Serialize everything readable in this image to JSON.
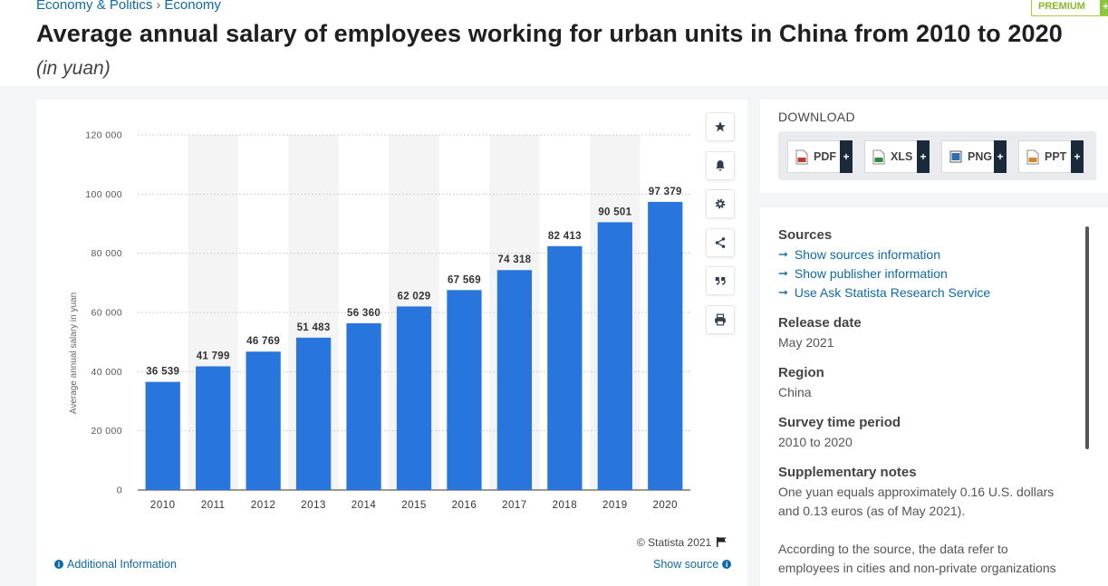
{
  "breadcrumb": {
    "part1": "Economy & Politics",
    "sep": "›",
    "part2": "Economy"
  },
  "premium": {
    "label": "PREMIUM",
    "plus": "+"
  },
  "title": "Average annual salary of employees working for urban units in China from 2010 to 2020",
  "subtitle": "(in yuan)",
  "chart_data": {
    "type": "bar",
    "categories": [
      "2010",
      "2011",
      "2012",
      "2013",
      "2014",
      "2015",
      "2016",
      "2017",
      "2018",
      "2019",
      "2020"
    ],
    "values": [
      36539,
      41799,
      46769,
      51483,
      56360,
      62029,
      67569,
      74318,
      82413,
      90501,
      97379
    ],
    "value_labels": [
      "36 539",
      "41 799",
      "46 769",
      "51 483",
      "56 360",
      "62 029",
      "67 569",
      "74 318",
      "82 413",
      "90 501",
      "97 379"
    ],
    "ylabel": "Average annual salary in yuan",
    "ylim": [
      0,
      120000
    ],
    "yticks": [
      0,
      20000,
      40000,
      60000,
      80000,
      100000,
      120000
    ],
    "ytick_labels": [
      "0",
      "20 000",
      "40 000",
      "60 000",
      "80 000",
      "100 000",
      "120 000"
    ],
    "bar_color": "#2876dd",
    "grid": true
  },
  "chart_footer": {
    "credit": "© Statista 2021",
    "additional_info": "Additional Information",
    "show_source": "Show source"
  },
  "toolbar_icons": [
    "star-icon",
    "bell-icon",
    "gear-icon",
    "share-icon",
    "quote-icon",
    "print-icon"
  ],
  "download": {
    "label": "DOWNLOAD",
    "buttons": [
      {
        "label": "PDF",
        "color": "#c0392b"
      },
      {
        "label": "XLS",
        "color": "#2e8b3a"
      },
      {
        "label": "PNG",
        "color": "#2a6fb0"
      },
      {
        "label": "PPT",
        "color": "#d9822b"
      }
    ],
    "plus": "+"
  },
  "details": {
    "sources_heading": "Sources",
    "links": [
      "Show sources information",
      "Show publisher information",
      "Use Ask Statista Research Service"
    ],
    "release_heading": "Release date",
    "release_value": "May 2021",
    "region_heading": "Region",
    "region_value": "China",
    "survey_heading": "Survey time period",
    "survey_value": "2010 to 2020",
    "notes_heading": "Supplementary notes",
    "notes_line1": "One yuan equals approximately 0.16 U.S. dollars",
    "notes_line2": "and 0.13 euros (as of May 2021).",
    "notes_line3": "According to the source, the data refer to",
    "notes_line4": "employees in cities and non-private organizations"
  }
}
